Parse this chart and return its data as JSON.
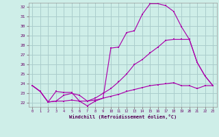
{
  "xlabel": "Windchill (Refroidissement éolien,°C)",
  "background_color": "#ceeee8",
  "grid_color": "#aacccc",
  "line_color": "#aa00aa",
  "ylim": [
    21.6,
    32.4
  ],
  "xlim": [
    -0.5,
    23.5
  ],
  "yticks": [
    22,
    23,
    24,
    25,
    26,
    27,
    28,
    29,
    30,
    31,
    32
  ],
  "xticks": [
    0,
    1,
    2,
    3,
    4,
    5,
    6,
    7,
    8,
    9,
    10,
    11,
    12,
    13,
    14,
    15,
    16,
    17,
    18,
    19,
    20,
    21,
    22,
    23
  ],
  "line1_x": [
    0,
    1,
    2,
    3,
    4,
    5,
    6,
    7,
    8,
    9,
    10,
    11,
    12,
    13,
    14,
    15,
    16,
    17,
    18,
    19,
    20,
    21,
    22,
    23
  ],
  "line1_y": [
    23.8,
    23.2,
    22.1,
    23.2,
    23.1,
    23.1,
    22.2,
    21.7,
    22.2,
    22.5,
    27.7,
    27.8,
    29.3,
    29.5,
    31.2,
    32.3,
    32.3,
    32.1,
    31.5,
    29.9,
    28.6,
    26.2,
    24.8,
    23.8
  ],
  "line2_x": [
    0,
    1,
    2,
    3,
    4,
    5,
    6,
    7,
    8,
    9,
    10,
    11,
    12,
    13,
    14,
    15,
    16,
    17,
    18,
    19,
    20,
    21,
    22,
    23
  ],
  "line2_y": [
    23.8,
    23.2,
    22.1,
    22.2,
    22.8,
    23.0,
    22.8,
    22.2,
    22.5,
    23.0,
    23.5,
    24.2,
    25.0,
    26.0,
    26.5,
    27.2,
    27.8,
    28.5,
    28.6,
    28.6,
    28.6,
    26.2,
    24.8,
    23.8
  ],
  "line3_x": [
    0,
    1,
    2,
    3,
    4,
    5,
    6,
    7,
    8,
    9,
    10,
    11,
    12,
    13,
    14,
    15,
    16,
    17,
    18,
    19,
    20,
    21,
    22,
    23
  ],
  "line3_y": [
    23.8,
    23.2,
    22.1,
    22.2,
    22.2,
    22.3,
    22.2,
    22.2,
    22.3,
    22.5,
    22.7,
    22.9,
    23.2,
    23.4,
    23.6,
    23.8,
    23.9,
    24.0,
    24.1,
    23.8,
    23.8,
    23.5,
    23.8,
    23.8
  ]
}
